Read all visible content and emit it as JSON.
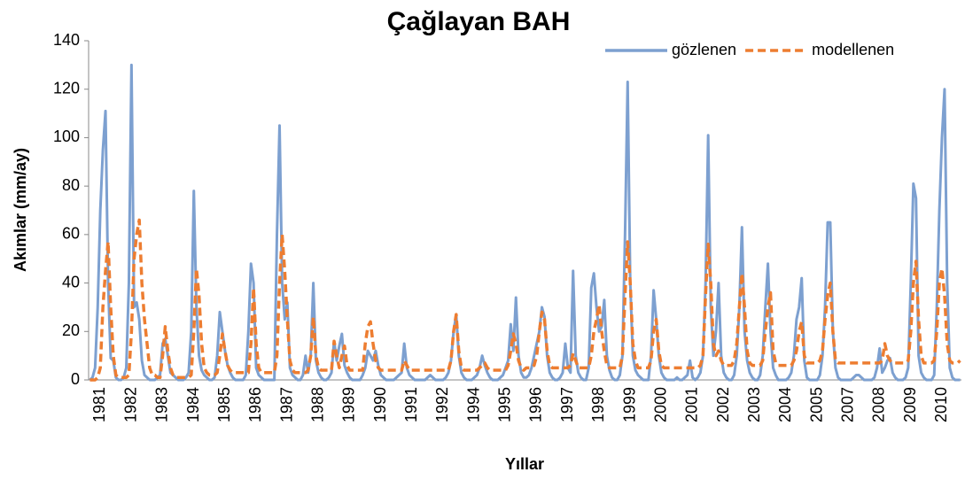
{
  "chart_data": {
    "type": "line",
    "title": "Çağlayan BAH",
    "x_label": "Yıllar",
    "y_label": "Akımlar (mm/ay)",
    "legend": "upper right",
    "grid": false,
    "ylim": [
      0,
      140
    ],
    "yticks": [
      0,
      20,
      40,
      60,
      80,
      100,
      120,
      140
    ],
    "categories": [
      "1981",
      null,
      null,
      null,
      null,
      null,
      null,
      null,
      null,
      null,
      null,
      null,
      "1982",
      null,
      null,
      null,
      null,
      null,
      null,
      null,
      null,
      null,
      null,
      null,
      "1983",
      null,
      null,
      null,
      null,
      null,
      null,
      null,
      null,
      null,
      null,
      null,
      "1984",
      null,
      null,
      null,
      null,
      null,
      null,
      null,
      null,
      null,
      null,
      null,
      "1985",
      null,
      null,
      null,
      null,
      null,
      null,
      null,
      null,
      null,
      null,
      null,
      "1986",
      null,
      null,
      null,
      null,
      null,
      null,
      null,
      null,
      null,
      null,
      null,
      "1987",
      null,
      null,
      null,
      null,
      null,
      null,
      null,
      null,
      null,
      null,
      null,
      "1988",
      null,
      null,
      null,
      null,
      null,
      null,
      null,
      null,
      null,
      null,
      null,
      "1989",
      null,
      null,
      null,
      null,
      null,
      null,
      null,
      null,
      null,
      null,
      null,
      "1990",
      null,
      null,
      null,
      null,
      null,
      null,
      null,
      null,
      null,
      null,
      null,
      "1991",
      null,
      null,
      null,
      null,
      null,
      null,
      null,
      null,
      null,
      null,
      null,
      "1992",
      null,
      null,
      null,
      null,
      null,
      null,
      null,
      null,
      null,
      null,
      null,
      "1994",
      null,
      null,
      null,
      null,
      null,
      null,
      null,
      null,
      null,
      null,
      null,
      "1995",
      null,
      null,
      null,
      null,
      null,
      null,
      null,
      null,
      null,
      null,
      null,
      "1996",
      null,
      null,
      null,
      null,
      null,
      null,
      null,
      null,
      null,
      null,
      null,
      "1997",
      null,
      null,
      null,
      null,
      null,
      null,
      null,
      null,
      null,
      null,
      null,
      "1998",
      null,
      null,
      null,
      null,
      null,
      null,
      null,
      null,
      null,
      null,
      null,
      "1999",
      null,
      null,
      null,
      null,
      null,
      null,
      null,
      null,
      null,
      null,
      null,
      "2000",
      null,
      null,
      null,
      null,
      null,
      null,
      null,
      null,
      null,
      null,
      null,
      "2001",
      null,
      null,
      null,
      null,
      null,
      null,
      null,
      null,
      null,
      null,
      null,
      "2002",
      null,
      null,
      null,
      null,
      null,
      null,
      null,
      null,
      null,
      null,
      null,
      "2003",
      null,
      null,
      null,
      null,
      null,
      null,
      null,
      null,
      null,
      null,
      null,
      "2004",
      null,
      null,
      null,
      null,
      null,
      null,
      null,
      null,
      null,
      null,
      null,
      "2005",
      null,
      null,
      null,
      null,
      null,
      null,
      null,
      null,
      null,
      null,
      null,
      "2007",
      null,
      null,
      null,
      null,
      null,
      null,
      null,
      null,
      null,
      null,
      null,
      "2008",
      null,
      null,
      null,
      null,
      null,
      null,
      null,
      null,
      null,
      null,
      null,
      "2009",
      null,
      null,
      null,
      null,
      null,
      null,
      null,
      null,
      null,
      null,
      null,
      "2010",
      null,
      null,
      null,
      null,
      null,
      null,
      null,
      null,
      null,
      null,
      null
    ],
    "series": [
      {
        "name": "gözlenen",
        "color": "#7da0d0",
        "dashed": false,
        "values": [
          0,
          1,
          5,
          30,
          70,
          95,
          111,
          40,
          9,
          8,
          1,
          0,
          0,
          1,
          5,
          40,
          130,
          30,
          32,
          25,
          8,
          2,
          1,
          0,
          0,
          0,
          1,
          2,
          15,
          17,
          10,
          3,
          2,
          1,
          0,
          0,
          0,
          1,
          3,
          20,
          78,
          30,
          10,
          4,
          2,
          1,
          0,
          0,
          1,
          10,
          28,
          20,
          12,
          6,
          3,
          1,
          0,
          0,
          0,
          0,
          2,
          20,
          48,
          40,
          5,
          2,
          1,
          0,
          0,
          0,
          0,
          0,
          60,
          105,
          40,
          25,
          32,
          5,
          2,
          1,
          0,
          0,
          2,
          10,
          3,
          10,
          40,
          8,
          3,
          1,
          0,
          0,
          1,
          3,
          16,
          8,
          14,
          19,
          6,
          3,
          1,
          0,
          0,
          0,
          0,
          2,
          5,
          12,
          10,
          8,
          12,
          6,
          2,
          1,
          0,
          0,
          0,
          0,
          1,
          2,
          3,
          15,
          5,
          2,
          1,
          0,
          0,
          0,
          0,
          0,
          1,
          2,
          1,
          0,
          0,
          0,
          0,
          1,
          3,
          8,
          20,
          27,
          10,
          3,
          1,
          0,
          0,
          0,
          1,
          2,
          5,
          10,
          6,
          3,
          1,
          0,
          0,
          0,
          1,
          2,
          5,
          8,
          23,
          12,
          34,
          10,
          3,
          1,
          1,
          2,
          5,
          10,
          15,
          20,
          30,
          26,
          10,
          3,
          1,
          0,
          0,
          1,
          3,
          15,
          5,
          3,
          45,
          10,
          3,
          1,
          0,
          0,
          5,
          38,
          44,
          30,
          20,
          22,
          33,
          10,
          4,
          1,
          0,
          0,
          2,
          10,
          60,
          123,
          40,
          10,
          4,
          2,
          1,
          0,
          0,
          0,
          10,
          37,
          25,
          10,
          3,
          1,
          0,
          0,
          0,
          0,
          1,
          0,
          0,
          1,
          2,
          8,
          1,
          0,
          1,
          3,
          10,
          40,
          101,
          30,
          10,
          20,
          40,
          10,
          3,
          1,
          0,
          0,
          2,
          10,
          30,
          63,
          20,
          8,
          3,
          1,
          0,
          0,
          2,
          10,
          30,
          48,
          20,
          5,
          2,
          0,
          0,
          0,
          0,
          1,
          3,
          10,
          25,
          30,
          42,
          8,
          1,
          0,
          0,
          0,
          0,
          2,
          10,
          30,
          65,
          65,
          20,
          5,
          1,
          0,
          0,
          0,
          0,
          0,
          1,
          2,
          2,
          1,
          0,
          0,
          0,
          0,
          1,
          5,
          13,
          3,
          5,
          8,
          9,
          3,
          1,
          0,
          0,
          0,
          1,
          5,
          40,
          81,
          75,
          10,
          3,
          1,
          0,
          0,
          0,
          2,
          30,
          70,
          100,
          120,
          40,
          5,
          1,
          0,
          0,
          0
        ]
      },
      {
        "name": "modellenen",
        "color": "#ed7d31",
        "dashed": true,
        "values": [
          0,
          0,
          0,
          1,
          5,
          30,
          45,
          57,
          30,
          10,
          2,
          1,
          1,
          1,
          1,
          2,
          20,
          50,
          60,
          66,
          40,
          25,
          15,
          5,
          2,
          2,
          1,
          1,
          10,
          22,
          12,
          5,
          2,
          1,
          1,
          1,
          1,
          1,
          1,
          2,
          20,
          46,
          35,
          15,
          5,
          3,
          2,
          2,
          2,
          3,
          10,
          19,
          12,
          6,
          4,
          3,
          3,
          3,
          3,
          3,
          3,
          3,
          15,
          38,
          15,
          5,
          3,
          3,
          3,
          3,
          3,
          3,
          10,
          40,
          60,
          45,
          25,
          8,
          4,
          3,
          3,
          3,
          3,
          3,
          4,
          10,
          26,
          10,
          5,
          4,
          4,
          4,
          4,
          4,
          16,
          10,
          5,
          10,
          14,
          6,
          4,
          4,
          4,
          4,
          4,
          4,
          15,
          22,
          24,
          15,
          8,
          5,
          4,
          4,
          4,
          4,
          4,
          4,
          4,
          4,
          4,
          8,
          6,
          4,
          4,
          4,
          4,
          4,
          4,
          4,
          4,
          4,
          4,
          4,
          4,
          4,
          4,
          4,
          4,
          8,
          20,
          27,
          12,
          5,
          4,
          4,
          4,
          4,
          4,
          4,
          5,
          6,
          7,
          5,
          4,
          4,
          4,
          4,
          4,
          4,
          4,
          6,
          12,
          19,
          15,
          8,
          5,
          4,
          5,
          5,
          5,
          6,
          10,
          20,
          28,
          25,
          12,
          6,
          5,
          5,
          5,
          5,
          5,
          5,
          5,
          6,
          11,
          8,
          5,
          5,
          5,
          5,
          5,
          10,
          20,
          25,
          31,
          20,
          12,
          6,
          5,
          5,
          5,
          5,
          5,
          10,
          35,
          57,
          40,
          15,
          8,
          5,
          5,
          5,
          5,
          5,
          8,
          20,
          25,
          12,
          6,
          5,
          5,
          5,
          5,
          5,
          5,
          5,
          5,
          5,
          5,
          5,
          5,
          5,
          5,
          6,
          10,
          35,
          56,
          40,
          15,
          10,
          12,
          8,
          6,
          6,
          6,
          6,
          8,
          15,
          30,
          44,
          30,
          12,
          7,
          6,
          6,
          6,
          6,
          8,
          20,
          30,
          36,
          12,
          7,
          6,
          6,
          6,
          6,
          6,
          6,
          8,
          12,
          20,
          24,
          10,
          7,
          7,
          7,
          7,
          7,
          8,
          12,
          25,
          35,
          40,
          20,
          8,
          7,
          7,
          7,
          7,
          7,
          7,
          7,
          7,
          7,
          7,
          7,
          7,
          7,
          7,
          7,
          7,
          7,
          8,
          15,
          10,
          8,
          7,
          7,
          7,
          7,
          7,
          7,
          8,
          20,
          40,
          49,
          25,
          10,
          7,
          7,
          7,
          7,
          8,
          20,
          40,
          46,
          35,
          15,
          8,
          7,
          7,
          7,
          8
        ]
      }
    ]
  }
}
